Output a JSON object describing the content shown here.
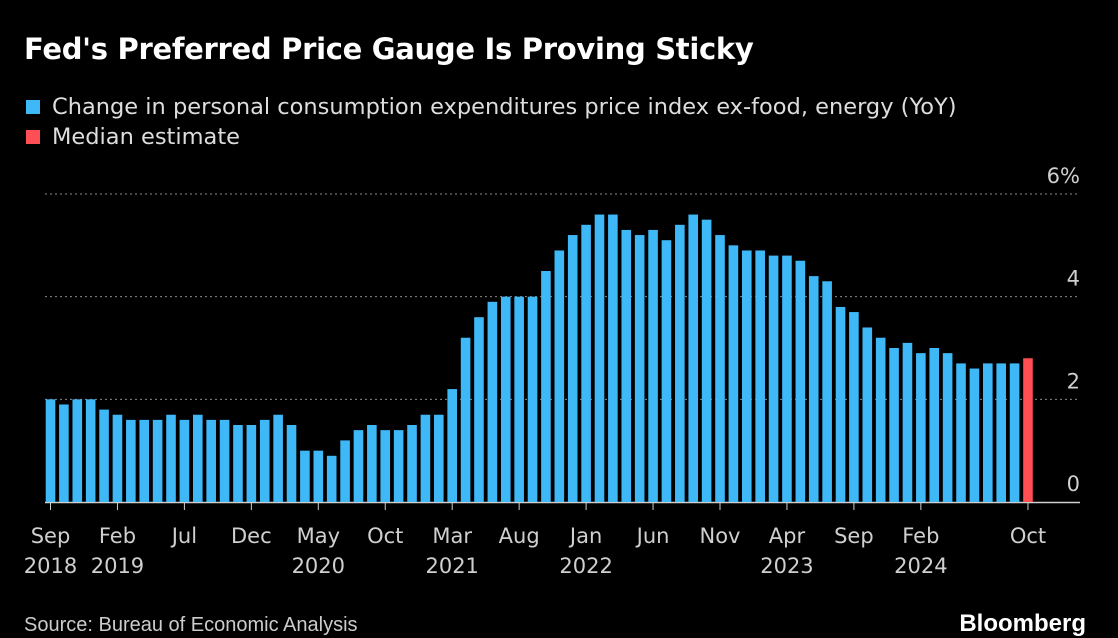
{
  "chart_data": {
    "type": "bar",
    "title": "Fed's Preferred Price Gauge Is Proving Sticky",
    "legend": [
      {
        "label": "Change in personal consumption expenditures price index ex-food, energy (YoY)",
        "color": "#3eb8f7"
      },
      {
        "label": "Median estimate",
        "color": "#ff4f55"
      }
    ],
    "ylim": [
      0,
      6
    ],
    "y_ticks": [
      {
        "value": 0,
        "label": "0"
      },
      {
        "value": 2,
        "label": "2"
      },
      {
        "value": 4,
        "label": "4"
      },
      {
        "value": 6,
        "label": "6%"
      }
    ],
    "x_ticks": [
      {
        "index": 0,
        "line1": "Sep",
        "line2": "2018"
      },
      {
        "index": 5,
        "line1": "Feb",
        "line2": "2019"
      },
      {
        "index": 10,
        "line1": "Jul",
        "line2": ""
      },
      {
        "index": 15,
        "line1": "Dec",
        "line2": ""
      },
      {
        "index": 20,
        "line1": "May",
        "line2": "2020"
      },
      {
        "index": 25,
        "line1": "Oct",
        "line2": ""
      },
      {
        "index": 30,
        "line1": "Mar",
        "line2": "2021"
      },
      {
        "index": 35,
        "line1": "Aug",
        "line2": ""
      },
      {
        "index": 40,
        "line1": "Jan",
        "line2": "2022"
      },
      {
        "index": 45,
        "line1": "Jun",
        "line2": ""
      },
      {
        "index": 50,
        "line1": "Nov",
        "line2": ""
      },
      {
        "index": 55,
        "line1": "Apr",
        "line2": "2023"
      },
      {
        "index": 60,
        "line1": "Sep",
        "line2": ""
      },
      {
        "index": 65,
        "line1": "Feb",
        "line2": "2024"
      },
      {
        "index": 73,
        "line1": "Oct",
        "line2": ""
      }
    ],
    "series": [
      {
        "name": "Change in personal consumption expenditures price index ex-food, energy (YoY)",
        "start": "Sep 2018",
        "values": [
          2.0,
          1.9,
          2.0,
          2.0,
          1.8,
          1.7,
          1.6,
          1.6,
          1.6,
          1.7,
          1.6,
          1.7,
          1.6,
          1.6,
          1.5,
          1.5,
          1.6,
          1.7,
          1.5,
          1.0,
          1.0,
          0.9,
          1.2,
          1.4,
          1.5,
          1.4,
          1.4,
          1.5,
          1.7,
          1.7,
          2.2,
          3.2,
          3.6,
          3.9,
          4.0,
          4.0,
          4.0,
          4.5,
          4.9,
          5.2,
          5.4,
          5.6,
          5.6,
          5.3,
          5.2,
          5.3,
          5.1,
          5.4,
          5.6,
          5.5,
          5.2,
          5.0,
          4.9,
          4.9,
          4.8,
          4.8,
          4.7,
          4.4,
          4.3,
          3.8,
          3.7,
          3.4,
          3.2,
          3.0,
          3.1,
          2.9,
          3.0,
          2.9,
          2.7,
          2.6,
          2.7,
          2.7,
          2.7
        ]
      },
      {
        "name": "Median estimate",
        "start": "Oct 2024",
        "values": [
          2.8
        ]
      }
    ]
  },
  "footer": {
    "source": "Source: Bureau of Economic Analysis",
    "brand": "Bloomberg"
  }
}
